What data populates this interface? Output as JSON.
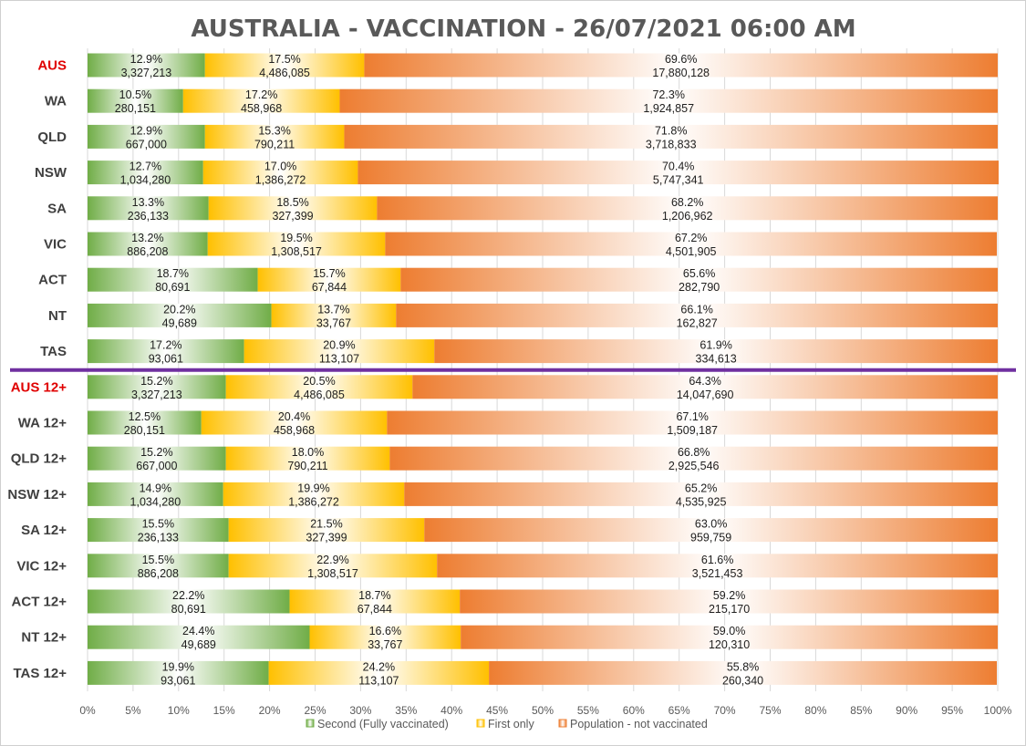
{
  "chart_data": {
    "type": "bar",
    "orientation": "horizontal",
    "stacked": "100%",
    "title": "AUSTRALIA - VACCINATION - 26/07/2021 06:00 AM",
    "xlim": [
      0,
      100
    ],
    "x_ticks": [
      "0%",
      "5%",
      "10%",
      "15%",
      "20%",
      "25%",
      "30%",
      "35%",
      "40%",
      "45%",
      "50%",
      "55%",
      "60%",
      "65%",
      "70%",
      "75%",
      "80%",
      "85%",
      "90%",
      "95%",
      "100%"
    ],
    "legend": [
      "Second (Fully vaccinated)",
      "First only",
      "Population - not vaccinated"
    ],
    "legend_position": "bottom",
    "colors": {
      "second": "#70ad47",
      "first": "#ffc000",
      "unvax": "#ed7d31",
      "divider": "#7030a0",
      "highlight": "#e00000"
    },
    "categories": [
      {
        "label": "AUS",
        "highlight": true,
        "second_pct": "12.9%",
        "second": "3,327,213",
        "first_pct": "17.5%",
        "first": "4,486,085",
        "unvax_pct": "69.6%",
        "unvax": "17,880,128",
        "s": 12.9,
        "f": 17.5,
        "u": 69.6
      },
      {
        "label": "WA",
        "highlight": false,
        "second_pct": "10.5%",
        "second": "280,151",
        "first_pct": "17.2%",
        "first": "458,968",
        "unvax_pct": "72.3%",
        "unvax": "1,924,857",
        "s": 10.5,
        "f": 17.2,
        "u": 72.3
      },
      {
        "label": "QLD",
        "highlight": false,
        "second_pct": "12.9%",
        "second": "667,000",
        "first_pct": "15.3%",
        "first": "790,211",
        "unvax_pct": "71.8%",
        "unvax": "3,718,833",
        "s": 12.9,
        "f": 15.3,
        "u": 71.8
      },
      {
        "label": "NSW",
        "highlight": false,
        "second_pct": "12.7%",
        "second": "1,034,280",
        "first_pct": "17.0%",
        "first": "1,386,272",
        "unvax_pct": "70.4%",
        "unvax": "5,747,341",
        "s": 12.7,
        "f": 17.0,
        "u": 70.4
      },
      {
        "label": "SA",
        "highlight": false,
        "second_pct": "13.3%",
        "second": "236,133",
        "first_pct": "18.5%",
        "first": "327,399",
        "unvax_pct": "68.2%",
        "unvax": "1,206,962",
        "s": 13.3,
        "f": 18.5,
        "u": 68.2
      },
      {
        "label": "VIC",
        "highlight": false,
        "second_pct": "13.2%",
        "second": "886,208",
        "first_pct": "19.5%",
        "first": "1,308,517",
        "unvax_pct": "67.2%",
        "unvax": "4,501,905",
        "s": 13.2,
        "f": 19.5,
        "u": 67.2
      },
      {
        "label": "ACT",
        "highlight": false,
        "second_pct": "18.7%",
        "second": "80,691",
        "first_pct": "15.7%",
        "first": "67,844",
        "unvax_pct": "65.6%",
        "unvax": "282,790",
        "s": 18.7,
        "f": 15.7,
        "u": 65.6
      },
      {
        "label": "NT",
        "highlight": false,
        "second_pct": "20.2%",
        "second": "49,689",
        "first_pct": "13.7%",
        "first": "33,767",
        "unvax_pct": "66.1%",
        "unvax": "162,827",
        "s": 20.2,
        "f": 13.7,
        "u": 66.1
      },
      {
        "label": "TAS",
        "highlight": false,
        "second_pct": "17.2%",
        "second": "93,061",
        "first_pct": "20.9%",
        "first": "113,107",
        "unvax_pct": "61.9%",
        "unvax": "334,613",
        "s": 17.2,
        "f": 20.9,
        "u": 61.9
      },
      {
        "label": "AUS 12+",
        "highlight": true,
        "second_pct": "15.2%",
        "second": "3,327,213",
        "first_pct": "20.5%",
        "first": "4,486,085",
        "unvax_pct": "64.3%",
        "unvax": "14,047,690",
        "s": 15.2,
        "f": 20.5,
        "u": 64.3
      },
      {
        "label": "WA 12+",
        "highlight": false,
        "second_pct": "12.5%",
        "second": "280,151",
        "first_pct": "20.4%",
        "first": "458,968",
        "unvax_pct": "67.1%",
        "unvax": "1,509,187",
        "s": 12.5,
        "f": 20.4,
        "u": 67.1
      },
      {
        "label": "QLD 12+",
        "highlight": false,
        "second_pct": "15.2%",
        "second": "667,000",
        "first_pct": "18.0%",
        "first": "790,211",
        "unvax_pct": "66.8%",
        "unvax": "2,925,546",
        "s": 15.2,
        "f": 18.0,
        "u": 66.8
      },
      {
        "label": "NSW 12+",
        "highlight": false,
        "second_pct": "14.9%",
        "second": "1,034,280",
        "first_pct": "19.9%",
        "first": "1,386,272",
        "unvax_pct": "65.2%",
        "unvax": "4,535,925",
        "s": 14.9,
        "f": 19.9,
        "u": 65.2
      },
      {
        "label": "SA 12+",
        "highlight": false,
        "second_pct": "15.5%",
        "second": "236,133",
        "first_pct": "21.5%",
        "first": "327,399",
        "unvax_pct": "63.0%",
        "unvax": "959,759",
        "s": 15.5,
        "f": 21.5,
        "u": 63.0
      },
      {
        "label": "VIC 12+",
        "highlight": false,
        "second_pct": "15.5%",
        "second": "886,208",
        "first_pct": "22.9%",
        "first": "1,308,517",
        "unvax_pct": "61.6%",
        "unvax": "3,521,453",
        "s": 15.5,
        "f": 22.9,
        "u": 61.6
      },
      {
        "label": "ACT 12+",
        "highlight": false,
        "second_pct": "22.2%",
        "second": "80,691",
        "first_pct": "18.7%",
        "first": "67,844",
        "unvax_pct": "59.2%",
        "unvax": "215,170",
        "s": 22.2,
        "f": 18.7,
        "u": 59.2
      },
      {
        "label": "NT 12+",
        "highlight": false,
        "second_pct": "24.4%",
        "second": "49,689",
        "first_pct": "16.6%",
        "first": "33,767",
        "unvax_pct": "59.0%",
        "unvax": "120,310",
        "s": 24.4,
        "f": 16.6,
        "u": 59.0
      },
      {
        "label": "TAS 12+",
        "highlight": false,
        "second_pct": "19.9%",
        "second": "93,061",
        "first_pct": "24.2%",
        "first": "113,107",
        "unvax_pct": "55.8%",
        "unvax": "260,340",
        "s": 19.9,
        "f": 24.2,
        "u": 55.8
      }
    ],
    "divider_after": "TAS"
  }
}
